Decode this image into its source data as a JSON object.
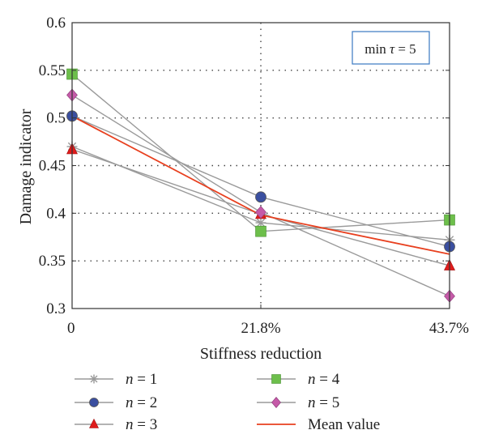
{
  "chart_data": {
    "type": "line",
    "xlabel": "Stiffness reduction",
    "ylabel": "Damage indicator",
    "categories": [
      "0",
      "21.8%",
      "43.7%"
    ],
    "yticks": [
      "0.3",
      "0.35",
      "0.4",
      "0.45",
      "0.5",
      "0.55",
      "0.6"
    ],
    "ylim": [
      0.3,
      0.6
    ],
    "grid": "dotted",
    "annotation": {
      "text_pre": "min ",
      "symbol": "τ",
      "text_post": " = 5"
    },
    "series": [
      {
        "name": "n = 1",
        "var": "n",
        "rest": " = 1",
        "values": [
          0.47,
          0.39,
          0.372
        ],
        "marker": "star",
        "color": "#9a9a9a",
        "line_color": "#9a9a9a"
      },
      {
        "name": "n = 2",
        "var": "n",
        "rest": " = 2",
        "values": [
          0.502,
          0.417,
          0.365
        ],
        "marker": "circle",
        "color": "#3a4fa0",
        "line_color": "#9a9a9a"
      },
      {
        "name": "n = 3",
        "var": "n",
        "rest": " = 3",
        "values": [
          0.467,
          0.399,
          0.345
        ],
        "marker": "triangle",
        "color": "#e01c1c",
        "line_color": "#9a9a9a"
      },
      {
        "name": "n = 4",
        "var": "n",
        "rest": " = 4",
        "values": [
          0.546,
          0.381,
          0.393
        ],
        "marker": "square",
        "color": "#6dbf4b",
        "line_color": "#9a9a9a"
      },
      {
        "name": "n = 5",
        "var": "n",
        "rest": " = 5",
        "values": [
          0.524,
          0.401,
          0.313
        ],
        "marker": "diamond",
        "color": "#c55aa8",
        "line_color": "#9a9a9a"
      },
      {
        "name": "Mean value",
        "var": "",
        "rest": "Mean value",
        "values": [
          0.502,
          0.398,
          0.357
        ],
        "marker": "none",
        "color": "#e8401f",
        "line_color": "#e8401f"
      }
    ]
  }
}
